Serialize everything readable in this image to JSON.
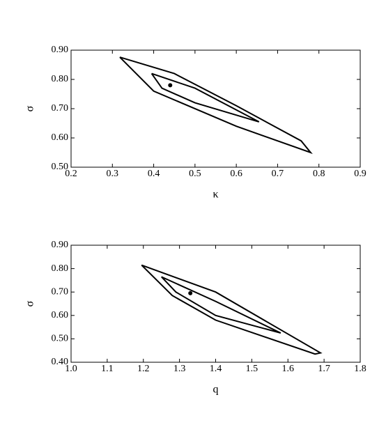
{
  "chart_data": [
    {
      "type": "line",
      "xlabel": "κ",
      "ylabel": "σ",
      "xlim": [
        0.2,
        0.9
      ],
      "ylim": [
        0.5,
        0.9
      ],
      "xticks": [
        0.2,
        0.3,
        0.4,
        0.5,
        0.6,
        0.7,
        0.8,
        0.9
      ],
      "yticks": [
        {
          "value": 0.5,
          "label": "0.50"
        },
        {
          "value": 0.6,
          "label": "0.60"
        },
        {
          "value": 0.7,
          "label": "0.70"
        },
        {
          "value": 0.8,
          "label": "0.80"
        },
        {
          "value": 0.9,
          "label": "0.90"
        }
      ],
      "series": [
        {
          "color": "#000000",
          "x": [
            0.318,
            0.45,
            0.6,
            0.757,
            0.78,
            0.6,
            0.4,
            0.318
          ],
          "values": [
            0.876,
            0.82,
            0.71,
            0.59,
            0.55,
            0.64,
            0.76,
            0.876
          ]
        },
        {
          "color": "#000000",
          "x": [
            0.395,
            0.5,
            0.655,
            0.5,
            0.42,
            0.395
          ],
          "values": [
            0.82,
            0.77,
            0.655,
            0.72,
            0.77,
            0.82
          ]
        },
        {
          "color": "#000000",
          "marker": true,
          "x": [
            0.44
          ],
          "values": [
            0.78
          ]
        }
      ]
    },
    {
      "type": "line",
      "xlabel": "q",
      "ylabel": "σ",
      "xlim": [
        1.0,
        1.8
      ],
      "ylim": [
        0.4,
        0.9
      ],
      "xticks": [
        {
          "value": 1.0,
          "label": "1.0"
        },
        1.1,
        1.2,
        1.3,
        1.4,
        1.5,
        1.6,
        1.7,
        1.8
      ],
      "yticks": [
        {
          "value": 0.4,
          "label": "0.40"
        },
        {
          "value": 0.5,
          "label": "0.50"
        },
        {
          "value": 0.6,
          "label": "0.60"
        },
        {
          "value": 0.7,
          "label": "0.70"
        },
        {
          "value": 0.8,
          "label": "0.80"
        },
        {
          "value": 0.9,
          "label": "0.90"
        }
      ],
      "series": [
        {
          "color": "#000000",
          "x": [
            1.195,
            1.4,
            1.69,
            1.675,
            1.4,
            1.28,
            1.195
          ],
          "values": [
            0.815,
            0.7,
            0.44,
            0.435,
            0.58,
            0.685,
            0.815
          ]
        },
        {
          "color": "#000000",
          "x": [
            1.25,
            1.4,
            1.58,
            1.4,
            1.29,
            1.25
          ],
          "values": [
            0.765,
            0.66,
            0.525,
            0.6,
            0.7,
            0.765
          ]
        },
        {
          "color": "#000000",
          "marker": true,
          "x": [
            1.33
          ],
          "values": [
            0.695
          ]
        }
      ]
    }
  ]
}
